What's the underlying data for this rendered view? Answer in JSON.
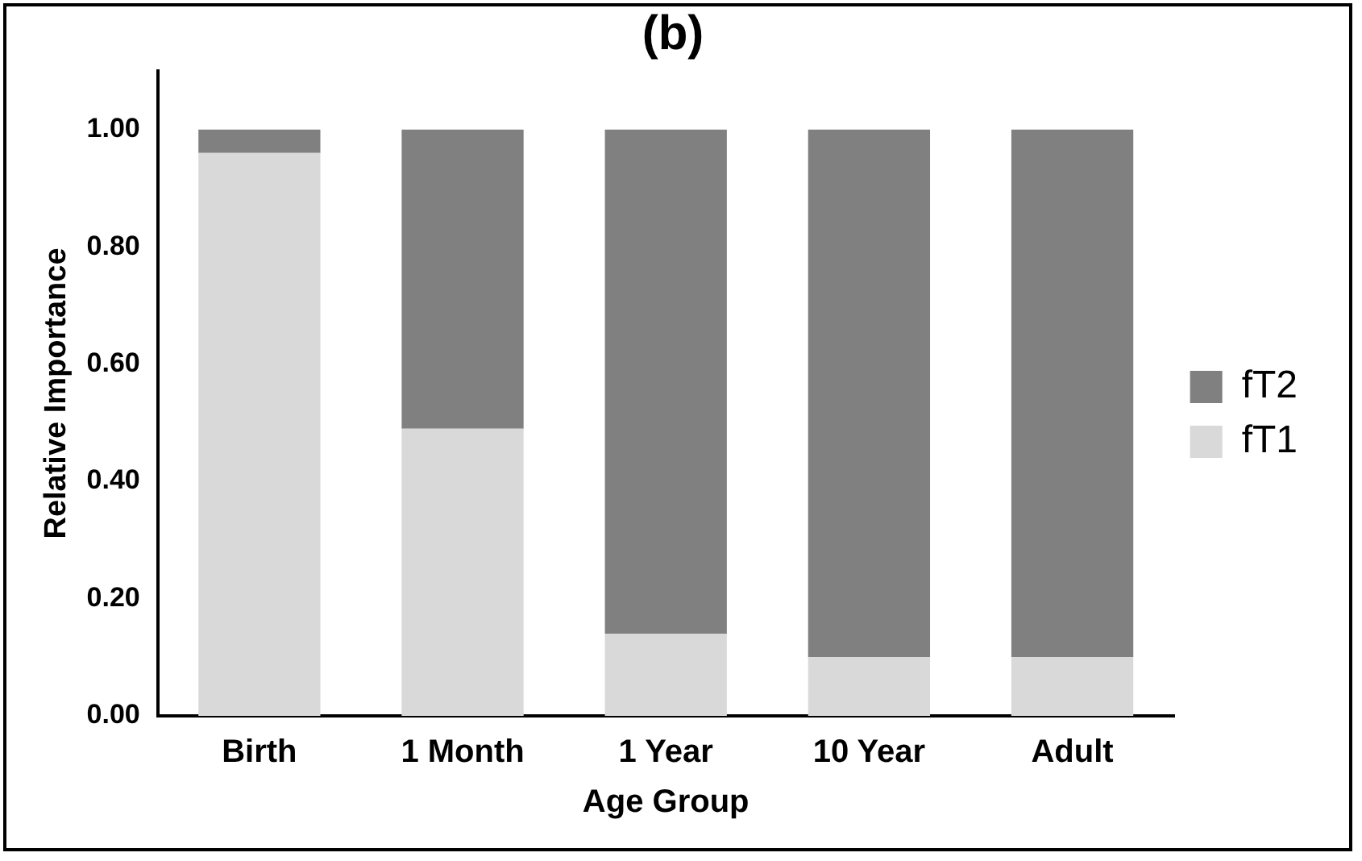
{
  "chart_data": {
    "type": "bar",
    "title": "(b)",
    "xlabel": "Age Group",
    "ylabel": "Relative Importance",
    "categories": [
      "Birth",
      "1 Month",
      "1 Year",
      "10 Year",
      "Adult"
    ],
    "series": [
      {
        "name": "fT1",
        "color": "#d9d9d9",
        "values": [
          0.96,
          0.49,
          0.14,
          0.1,
          0.1
        ]
      },
      {
        "name": "fT2",
        "color": "#808080",
        "values": [
          0.04,
          0.51,
          0.86,
          0.9,
          0.9
        ]
      }
    ],
    "stacked": true,
    "ylim": [
      0,
      1.1
    ],
    "yticks": [
      {
        "value": 0,
        "label": "0.00"
      },
      {
        "value": 0.2,
        "label": "0.20"
      },
      {
        "value": 0.4,
        "label": "0.40"
      },
      {
        "value": 0.6,
        "label": "0.60"
      },
      {
        "value": 0.8,
        "label": "0.80"
      },
      {
        "value": 1,
        "label": "1.00"
      }
    ],
    "grid": false,
    "legend": "right"
  }
}
